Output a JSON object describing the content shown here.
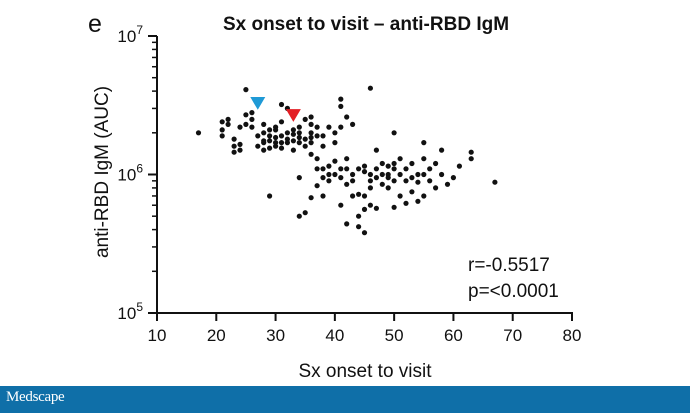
{
  "panel_letter": "e",
  "footer": {
    "brand": "Medscape"
  },
  "chart_data": {
    "type": "scatter",
    "title": "Sx onset to visit – anti-RBD IgM",
    "xlabel": "Sx onset to visit",
    "ylabel": "anti-RBD IgM (AUC)",
    "xlim": [
      10,
      80
    ],
    "xticks": [
      "10",
      "20",
      "30",
      "40",
      "50",
      "60",
      "70",
      "80"
    ],
    "ylim": [
      100000,
      10000000
    ],
    "yscale": "log",
    "yticks": [
      {
        "base": "10",
        "exp": "5",
        "value": 100000
      },
      {
        "base": "10",
        "exp": "6",
        "value": 1000000
      },
      {
        "base": "10",
        "exp": "7",
        "value": 10000000
      }
    ],
    "annotations": [
      "r=-0.5517",
      "p=<0.0001"
    ],
    "highlight_colors": {
      "blue": "#1f9ad6",
      "red": "#e31e24"
    },
    "highlighted_points": [
      {
        "color": "blue",
        "x": 27,
        "y": 3300000
      },
      {
        "color": "red",
        "x": 33,
        "y": 2700000
      }
    ],
    "points": [
      [
        17,
        2000000
      ],
      [
        21,
        2100000
      ],
      [
        21,
        2400000
      ],
      [
        21,
        1900000
      ],
      [
        22,
        2300000
      ],
      [
        22,
        2500000
      ],
      [
        23,
        1600000
      ],
      [
        23,
        1450000
      ],
      [
        23,
        1800000
      ],
      [
        24,
        1500000
      ],
      [
        24,
        1650000
      ],
      [
        24,
        2200000
      ],
      [
        25,
        4100000
      ],
      [
        25,
        2700000
      ],
      [
        25,
        2300000
      ],
      [
        26,
        2500000
      ],
      [
        26,
        2800000
      ],
      [
        26,
        2200000
      ],
      [
        27,
        1900000
      ],
      [
        27,
        1600000
      ],
      [
        28,
        2000000
      ],
      [
        28,
        1700000
      ],
      [
        28,
        1500000
      ],
      [
        28,
        1750000
      ],
      [
        28,
        2300000
      ],
      [
        29,
        2100000
      ],
      [
        29,
        1900000
      ],
      [
        29,
        1550000
      ],
      [
        29,
        1750000
      ],
      [
        29,
        700000
      ],
      [
        30,
        1850000
      ],
      [
        30,
        2100000
      ],
      [
        30,
        1600000
      ],
      [
        30,
        1700000
      ],
      [
        30,
        2200000
      ],
      [
        31,
        3200000
      ],
      [
        31,
        1700000
      ],
      [
        31,
        1900000
      ],
      [
        31,
        2400000
      ],
      [
        31,
        1550000
      ],
      [
        32,
        1800000
      ],
      [
        32,
        2000000
      ],
      [
        32,
        1700000
      ],
      [
        32,
        3000000
      ],
      [
        33,
        2100000
      ],
      [
        33,
        1750000
      ],
      [
        33,
        1950000
      ],
      [
        33,
        1500000
      ],
      [
        34,
        2200000
      ],
      [
        34,
        2000000
      ],
      [
        34,
        1700000
      ],
      [
        34,
        1850000
      ],
      [
        34,
        950000
      ],
      [
        34,
        500000
      ],
      [
        35,
        2500000
      ],
      [
        35,
        1600000
      ],
      [
        35,
        1800000
      ],
      [
        35,
        530000
      ],
      [
        36,
        2300000
      ],
      [
        36,
        2000000
      ],
      [
        36,
        1700000
      ],
      [
        36,
        1400000
      ],
      [
        36,
        1850000
      ],
      [
        36,
        2600000
      ],
      [
        36,
        680000
      ],
      [
        37,
        1900000
      ],
      [
        37,
        2200000
      ],
      [
        37,
        1300000
      ],
      [
        37,
        1100000
      ],
      [
        37,
        830000
      ],
      [
        38,
        1100000
      ],
      [
        38,
        1900000
      ],
      [
        38,
        1600000
      ],
      [
        38,
        950000
      ],
      [
        38,
        700000
      ],
      [
        39,
        2200000
      ],
      [
        39,
        1000000
      ],
      [
        39,
        900000
      ],
      [
        39,
        1150000
      ],
      [
        40,
        1700000
      ],
      [
        40,
        2000000
      ],
      [
        40,
        1250000
      ],
      [
        40,
        1000000
      ],
      [
        41,
        3500000
      ],
      [
        41,
        3100000
      ],
      [
        41,
        2200000
      ],
      [
        41,
        1100000
      ],
      [
        41,
        950000
      ],
      [
        41,
        600000
      ],
      [
        42,
        1100000
      ],
      [
        42,
        2600000
      ],
      [
        42,
        1300000
      ],
      [
        42,
        850000
      ],
      [
        42,
        440000
      ],
      [
        43,
        2300000
      ],
      [
        43,
        1000000
      ],
      [
        43,
        900000
      ],
      [
        43,
        700000
      ],
      [
        44,
        1100000
      ],
      [
        44,
        500000
      ],
      [
        44,
        420000
      ],
      [
        44,
        720000
      ],
      [
        45,
        1050000
      ],
      [
        45,
        700000
      ],
      [
        45,
        560000
      ],
      [
        45,
        1150000
      ],
      [
        45,
        380000
      ],
      [
        46,
        4200000
      ],
      [
        46,
        900000
      ],
      [
        46,
        1000000
      ],
      [
        46,
        600000
      ],
      [
        46,
        800000
      ],
      [
        47,
        1500000
      ],
      [
        47,
        1100000
      ],
      [
        47,
        950000
      ],
      [
        47,
        570000
      ],
      [
        48,
        1000000
      ],
      [
        48,
        1200000
      ],
      [
        48,
        850000
      ],
      [
        49,
        1150000
      ],
      [
        49,
        1000000
      ],
      [
        49,
        950000
      ],
      [
        49,
        800000
      ],
      [
        50,
        2000000
      ],
      [
        50,
        1200000
      ],
      [
        50,
        1100000
      ],
      [
        50,
        900000
      ],
      [
        50,
        580000
      ],
      [
        51,
        1300000
      ],
      [
        51,
        1000000
      ],
      [
        51,
        700000
      ],
      [
        52,
        1100000
      ],
      [
        52,
        900000
      ],
      [
        52,
        620000
      ],
      [
        53,
        1200000
      ],
      [
        53,
        950000
      ],
      [
        53,
        750000
      ],
      [
        54,
        1000000
      ],
      [
        54,
        880000
      ],
      [
        54,
        640000
      ],
      [
        55,
        1700000
      ],
      [
        55,
        1300000
      ],
      [
        55,
        1000000
      ],
      [
        55,
        700000
      ],
      [
        56,
        1100000
      ],
      [
        56,
        900000
      ],
      [
        57,
        1200000
      ],
      [
        57,
        800000
      ],
      [
        58,
        1500000
      ],
      [
        58,
        1000000
      ],
      [
        59,
        850000
      ],
      [
        60,
        950000
      ],
      [
        61,
        1150000
      ],
      [
        63,
        1450000
      ],
      [
        63,
        1300000
      ],
      [
        67,
        880000
      ]
    ]
  }
}
